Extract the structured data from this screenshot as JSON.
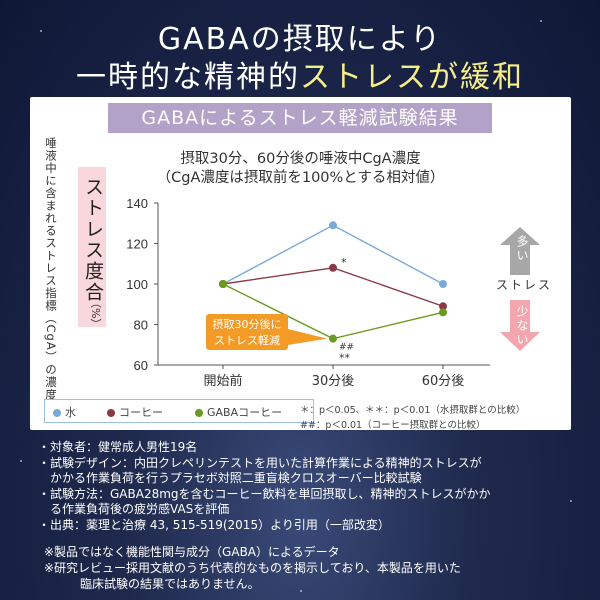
{
  "headline": {
    "line1": "GABAの摂取により",
    "line2_a": "一時的な精神的",
    "line2_b": "ストレスが緩和"
  },
  "card_title": "GABAによるストレス軽減試験結果",
  "chart_data": {
    "type": "line",
    "title": "摂取30分、60分後の唾液中CgA濃度",
    "subtitle": "（CgA濃度は摂取前を100%とする相対値）",
    "ylabel": "唾液中に含まれるストレス指標（CgA）の濃度",
    "ylabel_box": "ストレス度合",
    "ylabel_unit": "（%）",
    "categories": [
      "開始前",
      "30分後",
      "60分後"
    ],
    "yticks": [
      60,
      80,
      100,
      120,
      140
    ],
    "ylim": [
      60,
      140
    ],
    "series": [
      {
        "name": "水",
        "color": "#7aa9d8",
        "values": [
          100,
          129,
          100
        ]
      },
      {
        "name": "コーヒー",
        "color": "#8a3a45",
        "values": [
          100,
          108,
          89
        ]
      },
      {
        "name": "GABAコーヒー",
        "color": "#6a9a1f",
        "values": [
          100,
          73,
          86
        ]
      }
    ],
    "markers": {
      "star": "*",
      "hash": "##",
      "dstar": "**"
    },
    "callout": {
      "line1": "摂取30分後に",
      "line2": "ストレス軽減"
    },
    "notes": {
      "n1": "＊：p＜0.05、＊＊：p＜0.01（水摂取群との比較）",
      "n2": "##：p＜0.01（コーヒー摂取群との比較）"
    },
    "side": {
      "up": "多い",
      "label": "ストレス",
      "down": "少ない",
      "up_color": "#a7a7a7",
      "down_color": "#f3a6ad"
    }
  },
  "info": {
    "l1": "・対象者：健常成人男性19名",
    "l2": "・試験デザイン：内田クレペリンテストを用いた計算作業による精神的ストレスが",
    "l3": "かかる作業負荷を行うプラセボ対照二重盲検クロスオーバー比較試験",
    "l4": "・試験方法：GABA28mgを含むコーヒー飲料を単回摂取し、精神的ストレスがかか",
    "l5": "る作業負荷後の疲労感VASを評価",
    "l6": "・出典：薬理と治療 43, 515-519(2015）より引用（一部改変）"
  },
  "footnotes": {
    "f1": "※製品ではなく機能性関与成分（GABA）によるデータ",
    "f2": "※研究レビュー採用文献のうち代表的なものを掲示しており、本製品を用いた",
    "f3": "臨床試験の結果ではありません。"
  }
}
